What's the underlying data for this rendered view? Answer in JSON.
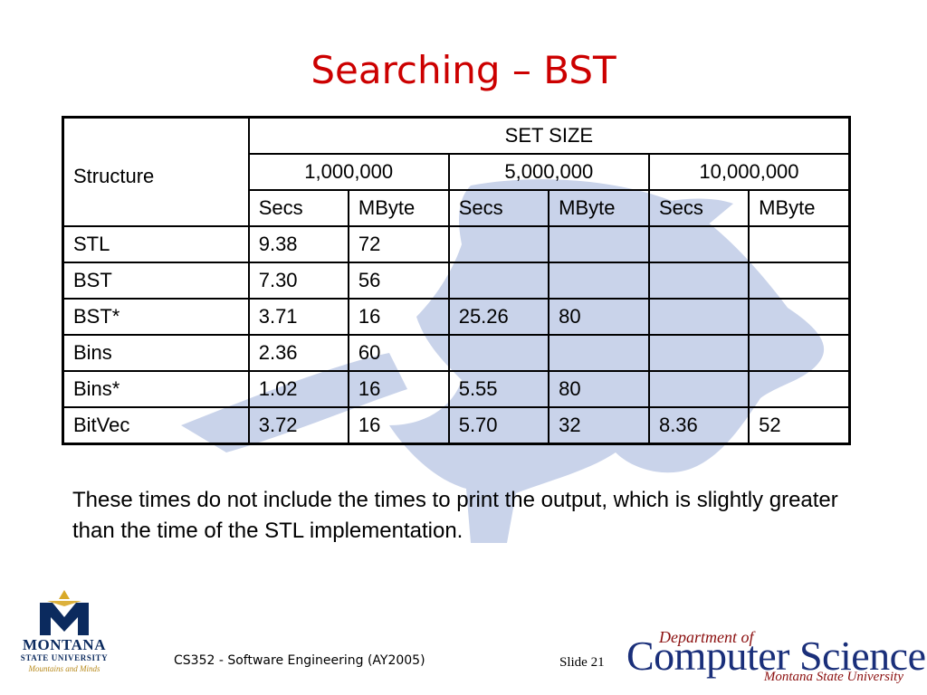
{
  "slide": {
    "title": "Searching – BST",
    "note": "These times do not include the times to print the output, which is slightly greater than the time of the STL implementation.",
    "footer_course": "CS352 - Software Engineering (AY2005)",
    "footer_slide": "Slide 21"
  },
  "table": {
    "structure_header": "Structure",
    "group_header": "SET SIZE",
    "sizes": [
      "1,000,000",
      "5,000,000",
      "10,000,000"
    ],
    "subheaders": [
      "Secs",
      "MByte",
      "Secs",
      "MByte",
      "Secs",
      "MByte"
    ],
    "rows": [
      {
        "name": "STL",
        "cells": [
          "9.38",
          "72",
          "",
          "",
          "",
          ""
        ]
      },
      {
        "name": "BST",
        "cells": [
          "7.30",
          "56",
          "",
          "",
          "",
          ""
        ]
      },
      {
        "name": "BST*",
        "cells": [
          "3.71",
          "16",
          "25.26",
          "80",
          "",
          ""
        ]
      },
      {
        "name": "Bins",
        "cells": [
          "2.36",
          "60",
          "",
          "",
          "",
          ""
        ]
      },
      {
        "name": "Bins*",
        "cells": [
          "1.02",
          "16",
          "5.55",
          "80",
          "",
          ""
        ]
      },
      {
        "name": "BitVec",
        "cells": [
          "3.72",
          "16",
          "5.70",
          "32",
          "8.36",
          "52"
        ]
      }
    ]
  },
  "logos": {
    "msu_name": "MONTANA",
    "msu_sub": "STATE UNIVERSITY",
    "msu_tagline": "Mountains and Minds",
    "cs_dept": "Department of",
    "cs_main": "Computer Science",
    "cs_msu": "Montana State University"
  },
  "colors": {
    "title": "#cc0000",
    "watermark": "#c9d3ea",
    "msu_navy": "#0b2a5e",
    "msu_gold": "#d8a928",
    "cs_blue": "#1a2f7a",
    "cs_red": "#8b0f0f"
  }
}
